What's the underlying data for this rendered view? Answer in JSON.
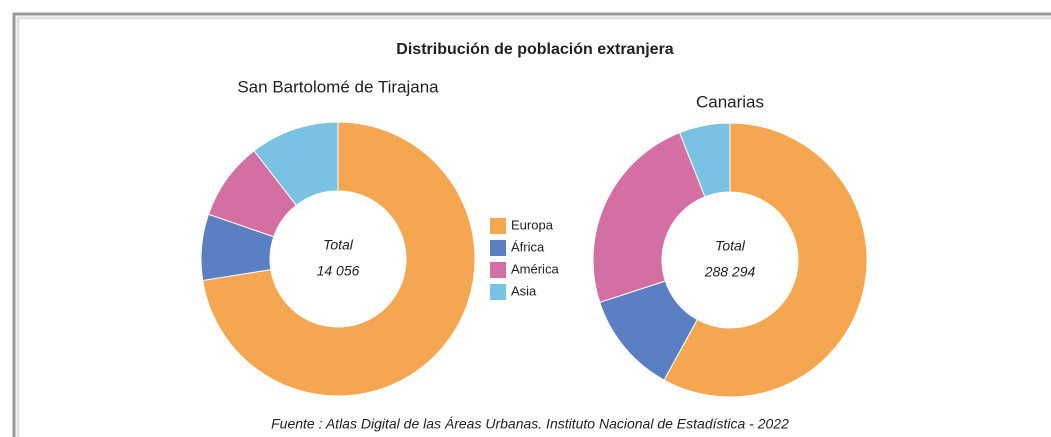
{
  "title": "Distribución de población extranjera",
  "source": "Fuente : Atlas Digital de las Áreas Urbanas. Instituto Nacional de Estadística - 2022",
  "chart_data": [
    {
      "type": "donut",
      "title": "San Bartolomé de Tirajana",
      "categories": [
        "Europa",
        "África",
        "América",
        "Asia"
      ],
      "values": [
        72.5,
        7.8,
        9.2,
        10.5
      ],
      "colors": [
        "#f4a750",
        "#5a7fc2",
        "#d46fa4",
        "#79c2e4"
      ],
      "center_label": "Total",
      "center_value": "14 056"
    },
    {
      "type": "donut",
      "title": "Canarias",
      "categories": [
        "Europa",
        "África",
        "América",
        "Asia"
      ],
      "values": [
        58,
        12,
        24,
        6
      ],
      "colors": [
        "#f4a750",
        "#5a7fc2",
        "#d46fa4",
        "#79c2e4"
      ],
      "center_label": "Total",
      "center_value": "288 294"
    }
  ]
}
